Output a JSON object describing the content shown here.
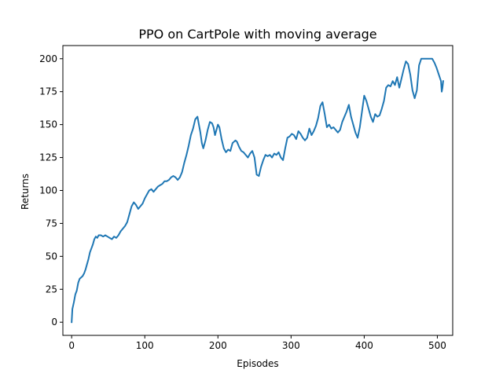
{
  "chart_data": {
    "type": "line",
    "title": "PPO on CartPole with moving average",
    "xlabel": "Episodes",
    "ylabel": "Returns",
    "xlim": [
      -12,
      521
    ],
    "ylim": [
      -10,
      210
    ],
    "xticks": [
      0,
      100,
      200,
      300,
      400,
      500
    ],
    "yticks": [
      0,
      25,
      50,
      75,
      100,
      125,
      150,
      175,
      200
    ],
    "grid": false,
    "line_color": "#1f77b4",
    "series": [
      {
        "x": [
          0,
          1,
          3,
          5,
          7,
          9,
          11,
          13,
          15,
          17,
          19,
          21,
          23,
          25,
          27,
          29,
          31,
          33,
          35,
          37,
          40,
          43,
          46,
          49,
          52,
          55,
          58,
          61,
          64,
          67,
          70,
          73,
          76,
          79,
          82,
          85,
          88,
          91,
          94,
          97,
          100,
          103,
          106,
          109,
          112,
          115,
          118,
          121,
          124,
          127,
          130,
          133,
          136,
          139,
          142,
          145,
          148,
          151,
          154,
          157,
          160,
          163,
          166,
          169,
          172,
          174,
          176,
          178,
          180,
          183,
          186,
          189,
          192,
          194,
          196,
          198,
          200,
          202,
          205,
          208,
          211,
          214,
          217,
          220,
          222,
          224,
          226,
          229,
          232,
          235,
          238,
          241,
          244,
          247,
          250,
          253,
          256,
          259,
          262,
          265,
          268,
          271,
          274,
          277,
          280,
          283,
          286,
          289,
          292,
          295,
          298,
          301,
          304,
          307,
          310,
          313,
          316,
          319,
          322,
          325,
          328,
          331,
          334,
          337,
          340,
          343,
          346,
          349,
          352,
          355,
          358,
          361,
          364,
          367,
          370,
          373,
          376,
          379,
          382,
          385,
          388,
          391,
          394,
          397,
          400,
          403,
          406,
          409,
          412,
          415,
          418,
          421,
          424,
          427,
          430,
          433,
          436,
          439,
          442,
          445,
          448,
          451,
          454,
          457,
          460,
          463,
          466,
          469,
          472,
          475,
          478,
          481,
          484,
          487,
          490,
          493,
          496,
          499,
          502,
          505,
          506,
          507,
          508
        ],
        "y": [
          0,
          10,
          15,
          21,
          24,
          30,
          33,
          34,
          35,
          37,
          40,
          44,
          48,
          53,
          56,
          59,
          63,
          65,
          64,
          66,
          66,
          65,
          66,
          65,
          64,
          63,
          65,
          64,
          66,
          69,
          71,
          73,
          76,
          82,
          88,
          91,
          89,
          86,
          88,
          90,
          94,
          97,
          100,
          101,
          99,
          101,
          103,
          104,
          105,
          107,
          107,
          108,
          110,
          111,
          110,
          108,
          110,
          114,
          121,
          127,
          134,
          142,
          147,
          154,
          156,
          150,
          144,
          136,
          132,
          138,
          146,
          152,
          151,
          148,
          142,
          146,
          150,
          148,
          139,
          132,
          129,
          131,
          130,
          136,
          137,
          138,
          137,
          133,
          130,
          129,
          127,
          125,
          128,
          130,
          125,
          112,
          111,
          118,
          123,
          127,
          126,
          127,
          125,
          128,
          127,
          129,
          125,
          123,
          132,
          140,
          141,
          143,
          142,
          139,
          145,
          143,
          140,
          138,
          140,
          147,
          142,
          145,
          149,
          155,
          164,
          167,
          158,
          148,
          150,
          147,
          148,
          146,
          144,
          146,
          152,
          156,
          160,
          165,
          156,
          150,
          144,
          140,
          148,
          160,
          172,
          168,
          162,
          156,
          152,
          158,
          156,
          157,
          162,
          168,
          178,
          180,
          179,
          183,
          180,
          186,
          178,
          185,
          192,
          198,
          196,
          188,
          176,
          170,
          176,
          195,
          200,
          200,
          200,
          200,
          200,
          200,
          197,
          193,
          188,
          183,
          175,
          178,
          183
        ]
      }
    ]
  }
}
